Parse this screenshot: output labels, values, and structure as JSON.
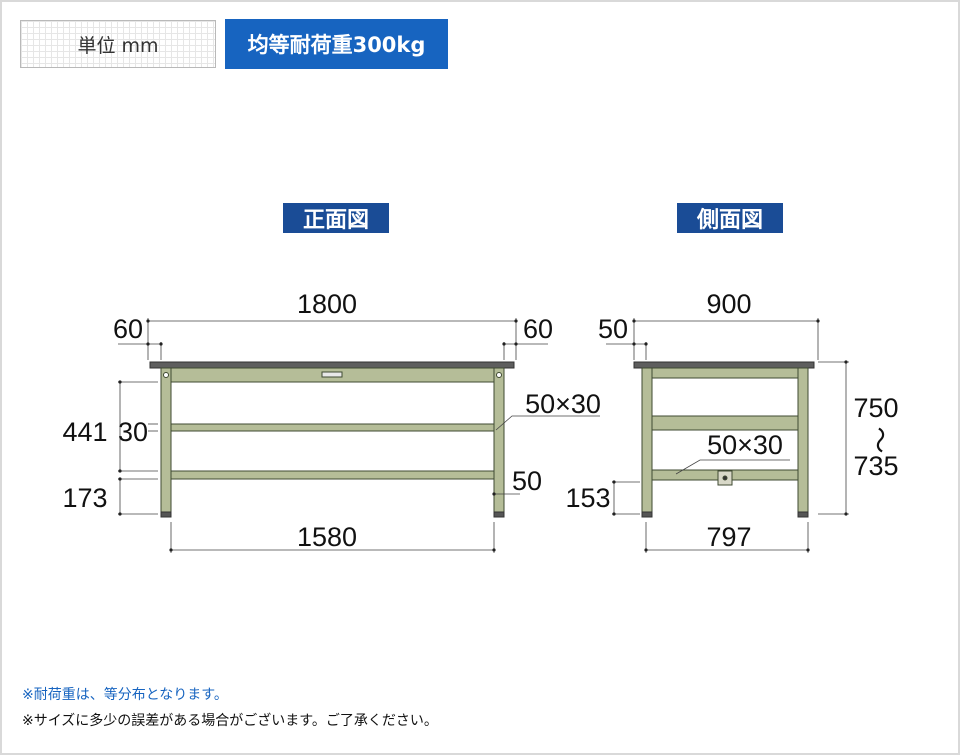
{
  "header": {
    "unit_label": "単位 mm",
    "load_label": "均等耐荷重300kg"
  },
  "front_view": {
    "title": "正面図",
    "dims": {
      "total_width": "1800",
      "overhang_left": "60",
      "overhang_right": "60",
      "shelf_height": "441",
      "frame_depth": "30",
      "bottom_height": "173",
      "inner_width": "1580",
      "beam_size": "50×30",
      "leg_width": "50"
    }
  },
  "side_view": {
    "title": "側面図",
    "dims": {
      "total_depth": "900",
      "overhang": "50",
      "beam_size": "50×30",
      "bottom_height": "153",
      "inner_depth": "797",
      "height_max": "750",
      "height_range_mark": "〜",
      "height_min": "735"
    }
  },
  "notes": {
    "note_1": "※耐荷重は、等分布となります。",
    "note_2": "※サイズに多少の誤差がある場合がございます。ご了承ください。"
  },
  "colors": {
    "frame_green": "#b5bd98",
    "frame_outline": "#3f4a32",
    "top_gray": "#5e5e5e",
    "title_blue": "#1a4c96",
    "load_blue": "#1764c0"
  }
}
